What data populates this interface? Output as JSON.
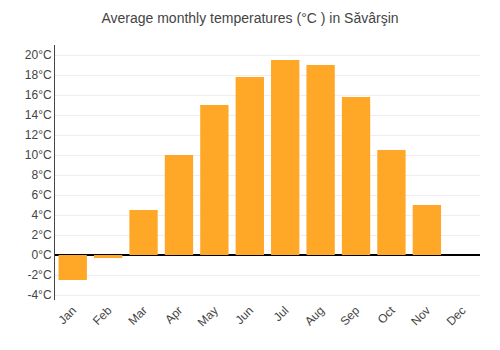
{
  "chart_data": {
    "type": "bar",
    "title": "Average monthly temperatures (°C ) in Săvârşin",
    "categories": [
      "Jan",
      "Feb",
      "Mar",
      "Apr",
      "May",
      "Jun",
      "Jul",
      "Aug",
      "Sep",
      "Oct",
      "Nov",
      "Dec"
    ],
    "values": [
      -2.5,
      -0.3,
      4.5,
      10.0,
      15.0,
      17.8,
      19.5,
      19.0,
      15.8,
      10.5,
      5.0,
      0.0
    ],
    "color": "#FFA726",
    "ylim": [
      -4.5,
      21
    ],
    "yticks": [
      {
        "value": -4,
        "label": "-4°C"
      },
      {
        "value": -2,
        "label": "-2°C"
      },
      {
        "value": 0,
        "label": "0°C"
      },
      {
        "value": 2,
        "label": "2°C"
      },
      {
        "value": 4,
        "label": "4°C"
      },
      {
        "value": 6,
        "label": "6°C"
      },
      {
        "value": 8,
        "label": "8°C"
      },
      {
        "value": 10,
        "label": "10°C"
      },
      {
        "value": 12,
        "label": "12°C"
      },
      {
        "value": 14,
        "label": "14°C"
      },
      {
        "value": 16,
        "label": "16°C"
      },
      {
        "value": 18,
        "label": "18°C"
      },
      {
        "value": 20,
        "label": "20°C"
      }
    ],
    "grid": true
  }
}
